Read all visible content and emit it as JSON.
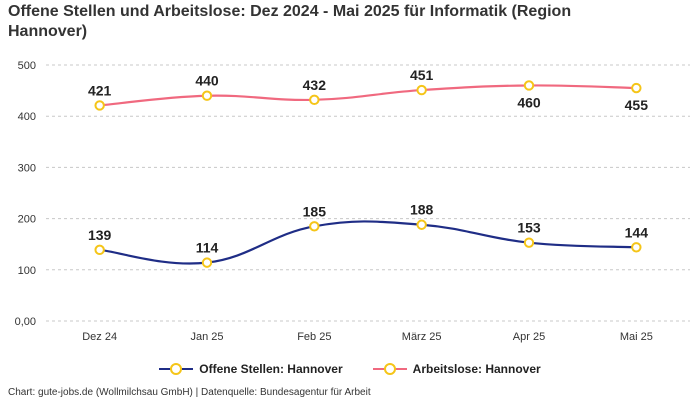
{
  "chart_data": {
    "type": "line",
    "title": "Offene Stellen und Arbeitslose: Dez 2024 - Mai 2025 für Informatik (Region Hannover)",
    "categories": [
      "Dez 24",
      "Jan 25",
      "Feb 25",
      "März 25",
      "Apr 25",
      "Mai 25"
    ],
    "y_ticks": [
      "0,00",
      "100",
      "200",
      "300",
      "400",
      "500"
    ],
    "ylim": [
      0,
      500
    ],
    "grid": true,
    "legend_position": "bottom",
    "series": [
      {
        "name": "Offene Stellen: Hannover",
        "values": [
          139,
          114,
          185,
          188,
          153,
          144
        ],
        "labels": [
          "139",
          "114",
          "185",
          "188",
          "153",
          "144"
        ],
        "label_position": [
          "above",
          "above",
          "above",
          "above",
          "above",
          "above"
        ],
        "color": "#1f2d86"
      },
      {
        "name": "Arbeitslose: Hannover",
        "values": [
          421,
          440,
          432,
          451,
          460,
          455
        ],
        "labels": [
          "421",
          "440",
          "432",
          "451",
          "460",
          "455"
        ],
        "label_position": [
          "above",
          "above",
          "above",
          "above",
          "below",
          "below"
        ],
        "color": "#f0697f"
      }
    ],
    "marker_color": "#f5c518",
    "source": "Chart: gute-jobs.de (Wollmilchsau GmbH) | Datenquelle: Bundesagentur für Arbeit"
  }
}
